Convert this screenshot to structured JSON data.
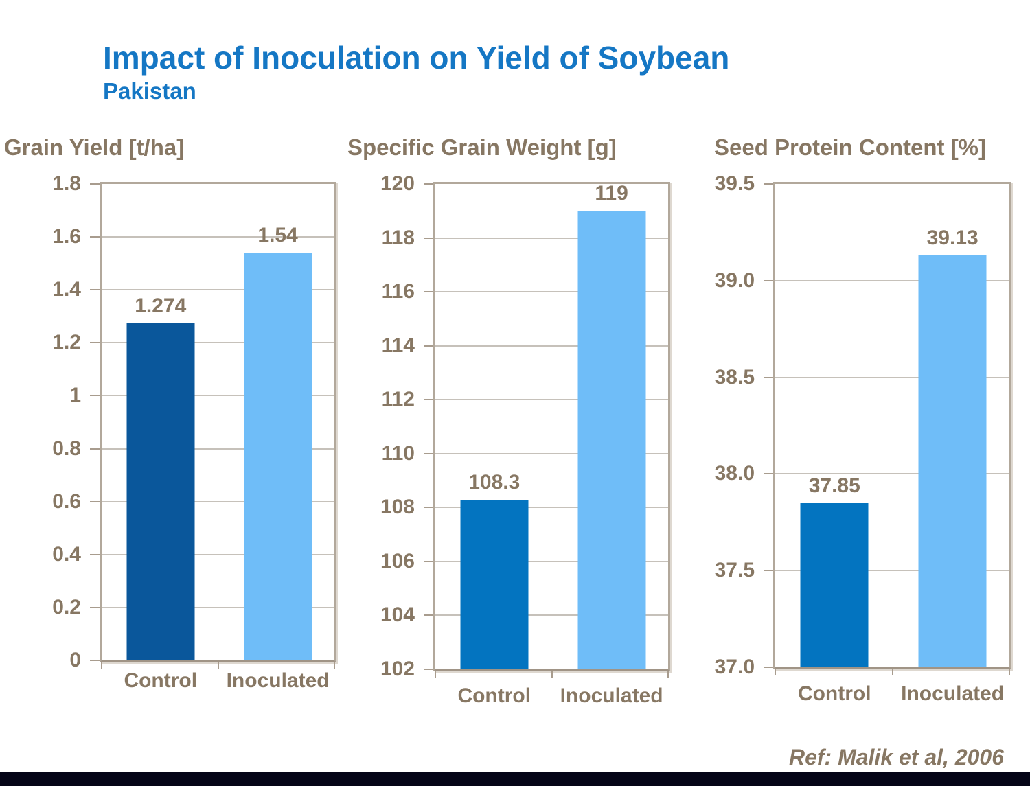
{
  "slide": {
    "title": "Impact of Inoculation on Yield of Soybean",
    "subtitle": "Pakistan",
    "reference": "Ref: Malik et al, 2006"
  },
  "colors": {
    "title_blue": "#1577c4",
    "label_brown": "#877763",
    "control_bar_chart1": "#0a579b",
    "control_bar_charts23": "#0374c0",
    "inoculated_bar": "#6fbdf8",
    "gridline": "#c6c1ba",
    "plot_border": "#b2a89b",
    "footer_bar": "#050517"
  },
  "chart_data": [
    {
      "type": "bar",
      "title": "Grain Yield [t/ha]",
      "categories": [
        "Control",
        "Inoculated"
      ],
      "values": [
        1.274,
        1.54
      ],
      "value_labels": [
        "1.274",
        "1.54"
      ],
      "bar_colors": [
        "#0a579b",
        "#6fbdf8"
      ],
      "ylim": [
        0,
        1.8
      ],
      "ytick_step": 0.2,
      "ytick_labels": [
        "1.8",
        "1.6",
        "1.4",
        "1.2",
        "1",
        "0.8",
        "0.6",
        "0.4",
        "0.2",
        "0"
      ],
      "grid": true,
      "legend": "none"
    },
    {
      "type": "bar",
      "title": "Specific Grain Weight [g]",
      "categories": [
        "Control",
        "Inoculated"
      ],
      "values": [
        108.3,
        119
      ],
      "value_labels": [
        "108.3",
        "119"
      ],
      "bar_colors": [
        "#0374c0",
        "#6fbdf8"
      ],
      "ylim": [
        102,
        120
      ],
      "ytick_step": 2,
      "ytick_labels": [
        "120",
        "118",
        "116",
        "114",
        "112",
        "110",
        "108",
        "106",
        "104",
        "102"
      ],
      "grid": true,
      "legend": "none"
    },
    {
      "type": "bar",
      "title": "Seed Protein Content [%]",
      "categories": [
        "Control",
        "Inoculated"
      ],
      "values": [
        37.85,
        39.13
      ],
      "value_labels": [
        "37.85",
        "39.13"
      ],
      "bar_colors": [
        "#0374c0",
        "#6fbdf8"
      ],
      "ylim": [
        37.0,
        39.5
      ],
      "ytick_step": 0.5,
      "ytick_labels": [
        "39.5",
        "39.0",
        "38.5",
        "38.0",
        "37.5",
        "37.0"
      ],
      "grid": true,
      "legend": "none"
    }
  ]
}
